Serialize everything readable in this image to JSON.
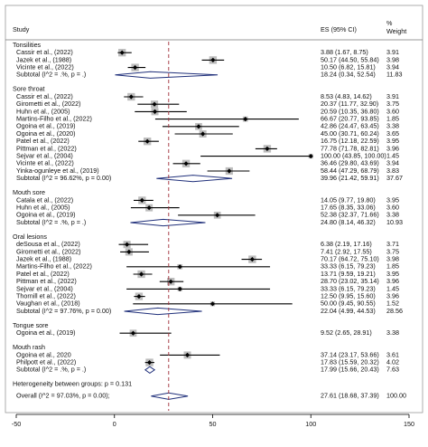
{
  "chart_data": {
    "type": "forest",
    "header": {
      "study": "Study",
      "es": "ES (95% CI)",
      "weight_top": "%",
      "weight_bottom": "Weight"
    },
    "xlim": [
      -50,
      150
    ],
    "xticks": [
      -50,
      0,
      50,
      100,
      150
    ],
    "groups": [
      {
        "name": "Tonsilities",
        "studies": [
          {
            "study": "Cassir et al., (2022)",
            "es": 3.88,
            "lo": 1.67,
            "hi": 8.75,
            "ci_label": "3.88 (1.67, 8.75)",
            "weight": 3.91
          },
          {
            "study": "Jazek et al., (1988)",
            "es": 50.17,
            "lo": 44.5,
            "hi": 55.84,
            "ci_label": "50.17 (44.50, 55.84)",
            "weight": 3.98
          },
          {
            "study": "Vicinte et al., (2022)",
            "es": 10.5,
            "lo": 6.82,
            "hi": 15.81,
            "ci_label": "10.50 (6.82, 15.81)",
            "weight": 3.94
          }
        ],
        "subtotal": {
          "study": "Subtotal  (I^2 = .%, p = .)",
          "es": 18.24,
          "lo": 0.34,
          "hi": 52.54,
          "ci_label": "18.24 (0.34, 52.54)",
          "weight": 11.83
        }
      },
      {
        "name": "Sore throat",
        "studies": [
          {
            "study": "Cassir et al., (2022)",
            "es": 8.53,
            "lo": 4.83,
            "hi": 14.62,
            "ci_label": "8.53 (4.83, 14.62)",
            "weight": 3.91
          },
          {
            "study": "Girometti et al., (2022)",
            "es": 20.37,
            "lo": 11.77,
            "hi": 32.9,
            "ci_label": "20.37 (11.77, 32.90)",
            "weight": 3.75
          },
          {
            "study": "Huhn et al., (2005)",
            "es": 20.59,
            "lo": 10.35,
            "hi": 36.8,
            "ci_label": "20.59 (10.35, 36.80)",
            "weight": 3.6,
            "weight_label": "3.60"
          },
          {
            "study": "Martins-Filho et al., (2022)",
            "es": 66.67,
            "lo": 20.77,
            "hi": 93.85,
            "ci_label": "66.67 (20.77, 93.85)",
            "weight": 1.85
          },
          {
            "study": "Ogoina et al., (2019)",
            "es": 42.86,
            "lo": 24.47,
            "hi": 63.45,
            "ci_label": "42.86 (24.47, 63.45)",
            "weight": 3.38
          },
          {
            "study": "Ogoina et al., (2020)",
            "es": 45.0,
            "lo": 30.71,
            "hi": 60.24,
            "ci_label": "45.00 (30.71, 60.24)",
            "weight": 3.65
          },
          {
            "study": "Patel et al., (2022)",
            "es": 16.75,
            "lo": 12.18,
            "hi": 22.59,
            "ci_label": "16.75 (12.18, 22.59)",
            "weight": 3.95
          },
          {
            "study": "Pittman et al., (2022)",
            "es": 77.78,
            "lo": 71.78,
            "hi": 82.81,
            "ci_label": "77.78 (71.78, 82.81)",
            "weight": 3.96
          },
          {
            "study": "Sejvar et al., (2004)",
            "es": 100,
            "lo": 43.85,
            "hi": 100,
            "ci_label": "100.00 (43.85, 100.00)",
            "weight": 1.45
          },
          {
            "study": "Vicinte et al., (2022)",
            "es": 36.46,
            "lo": 29.8,
            "hi": 43.69,
            "ci_label": "36.46 (29.80, 43.69)",
            "weight": 3.94
          },
          {
            "study": "Yinka-ogunleye et al., (2019)",
            "es": 58.44,
            "lo": 47.29,
            "hi": 68.79,
            "ci_label": "58.44 (47.29, 68.79)",
            "weight": 3.83
          }
        ],
        "subtotal": {
          "study": "Subtotal  (I^2 = 96.62%, p = 0.00)",
          "es": 39.96,
          "lo": 21.42,
          "hi": 59.91,
          "ci_label": "39.96 (21.42, 59.91)",
          "weight": 37.67
        }
      },
      {
        "name": "Mouth sore",
        "studies": [
          {
            "study": "Catala et al., (2022)",
            "es": 14.05,
            "lo": 9.77,
            "hi": 19.8,
            "ci_label": "14.05 (9.77, 19.80)",
            "weight": 3.95
          },
          {
            "study": "Huhn et al., (2005)",
            "es": 17.65,
            "lo": 8.35,
            "hi": 33.06,
            "ci_label": "17.65 (8.35, 33.06)",
            "weight": 3.6,
            "weight_label": "3.60"
          },
          {
            "study": "Ogoina et al., (2019)",
            "es": 52.38,
            "lo": 32.37,
            "hi": 71.66,
            "ci_label": "52.38 (32.37, 71.66)",
            "weight": 3.38
          }
        ],
        "subtotal": {
          "study": "Subtotal  (I^2 = .%, p = .)",
          "es": 24.8,
          "lo": 8.14,
          "hi": 46.32,
          "ci_label": "24.80 (8.14, 46.32)",
          "weight": 10.93
        }
      },
      {
        "name": "Oral lesions",
        "studies": [
          {
            "study": "deSousa et al., (2022)",
            "es": 6.38,
            "lo": 2.19,
            "hi": 17.16,
            "ci_label": "6.38 (2.19, 17.16)",
            "weight": 3.71
          },
          {
            "study": "Girometti et al., (2022)",
            "es": 7.41,
            "lo": 2.92,
            "hi": 17.55,
            "ci_label": "7.41 (2.92, 17.55)",
            "weight": 3.75
          },
          {
            "study": "Jazek et al., (1988)",
            "es": 70.17,
            "lo": 64.72,
            "hi": 75.1,
            "ci_label": "70.17 (64.72, 75.10)",
            "weight": 3.98
          },
          {
            "study": "Martins-Filho et al., (2022)",
            "es": 33.33,
            "lo": 6.15,
            "hi": 79.23,
            "ci_label": "33.33 (6.15, 79.23)",
            "weight": 1.85
          },
          {
            "study": "Patel et al., (2022)",
            "es": 13.71,
            "lo": 9.59,
            "hi": 19.21,
            "ci_label": "13.71 (9.59, 19.21)",
            "weight": 3.95
          },
          {
            "study": "Pittman et al., (2022)",
            "es": 28.7,
            "lo": 23.02,
            "hi": 35.14,
            "ci_label": "28.70 (23.02, 35.14)",
            "weight": 3.96
          },
          {
            "study": "Sejvar et al., (2004)",
            "es": 33.33,
            "lo": 6.15,
            "hi": 79.23,
            "ci_label": "33.33 (6.15, 79.23)",
            "weight": 1.45
          },
          {
            "study": "Thornill et al., (2022)",
            "es": 12.5,
            "lo": 9.95,
            "hi": 15.6,
            "ci_label": "12.50 (9.95, 15.60)",
            "weight": 3.96
          },
          {
            "study": "Vaughan et al., (2018)",
            "es": 50.0,
            "lo": 9.45,
            "hi": 90.55,
            "ci_label": "50.00 (9.45, 90.55)",
            "weight": 1.52
          }
        ],
        "subtotal": {
          "study": "Subtotal  (I^2 = 97.76%, p = 0.00)",
          "es": 22.04,
          "lo": 4.99,
          "hi": 44.53,
          "ci_label": "22.04 (4.99, 44.53)",
          "weight": 28.56
        }
      },
      {
        "name": "Tongue sore",
        "studies": [
          {
            "study": "Ogoina et al., (2019)",
            "es": 9.52,
            "lo": 2.65,
            "hi": 28.91,
            "ci_label": "9.52 (2.65, 28.91)",
            "weight": 3.38
          }
        ]
      },
      {
        "name": "Mouth rash",
        "studies": [
          {
            "study": "Ogoina et al., 2020",
            "es": 37.14,
            "lo": 23.17,
            "hi": 53.66,
            "ci_label": "37.14 (23.17, 53.66)",
            "weight": 3.61
          },
          {
            "study": "Philpott et al., (2022)",
            "es": 17.83,
            "lo": 15.59,
            "hi": 20.32,
            "ci_label": "17.83 (15.59, 20.32)",
            "weight": 4.02
          }
        ],
        "subtotal": {
          "study": "Subtotal  (I^2 = .%, p = .)",
          "es": 17.99,
          "lo": 15.66,
          "hi": 20.43,
          "ci_label": "17.99 (15.66, 20.43)",
          "weight": 7.63
        }
      }
    ],
    "heterogeneity": "Heterogeneity between groups: p = 0.131",
    "overall": {
      "study": "Overall  (I^2 = 97.03%, p = 0.00);",
      "es": 27.61,
      "lo": 18.68,
      "hi": 37.39,
      "ci_label": "27.61 (18.68, 37.39)",
      "weight": 100,
      "weight_label": "100.00"
    },
    "square_color": "#bdbdbd",
    "diamond_color": "#1f2f7a",
    "ref_line_color": "#a0303a"
  }
}
